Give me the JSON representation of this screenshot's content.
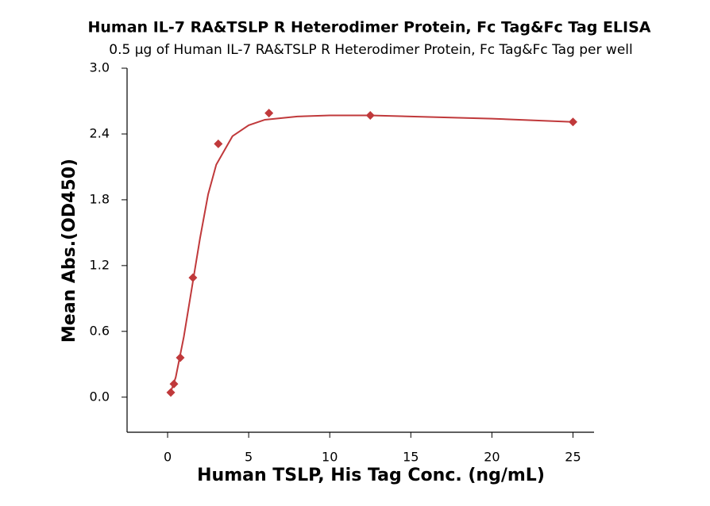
{
  "chart_data": {
    "type": "scatter",
    "title": "Human IL-7 RA&TSLP R Heterodimer Protein, Fc Tag&Fc Tag ELISA",
    "subtitle": "0.5 μg of Human IL-7 RA&TSLP R Heterodimer Protein, Fc Tag&Fc Tag per well",
    "x_label": "Human TSLP, His Tag Conc. (ng/mL)",
    "y_label": "Mean Abs.(OD450)",
    "xlim": [
      -2.5,
      26.3
    ],
    "ylim": [
      -0.32,
      3.0
    ],
    "xticks": [
      0,
      5,
      10,
      15,
      20,
      25
    ],
    "yticks": [
      {
        "value": 0,
        "label": "0.0"
      },
      0.6,
      1.2,
      1.8,
      2.4,
      {
        "value": 3,
        "label": "3.0"
      }
    ],
    "series": [
      {
        "color": "#c0393b",
        "marker": "diamond",
        "x": [
          0.195,
          0.39,
          0.78,
          1.56,
          3.125,
          6.25,
          12.5,
          25
        ],
        "values": [
          0.043,
          0.12,
          0.36,
          1.09,
          2.31,
          2.59,
          2.57,
          2.51
        ]
      },
      {
        "color": "#c0393b",
        "line": true,
        "x": [
          0.2,
          0.5,
          1,
          1.5,
          2,
          2.5,
          3,
          4,
          5,
          6,
          8,
          10,
          12.5,
          15,
          20,
          25
        ],
        "values": [
          0.05,
          0.18,
          0.55,
          1.0,
          1.45,
          1.85,
          2.12,
          2.38,
          2.48,
          2.53,
          2.56,
          2.57,
          2.57,
          2.56,
          2.54,
          2.51
        ]
      }
    ]
  }
}
